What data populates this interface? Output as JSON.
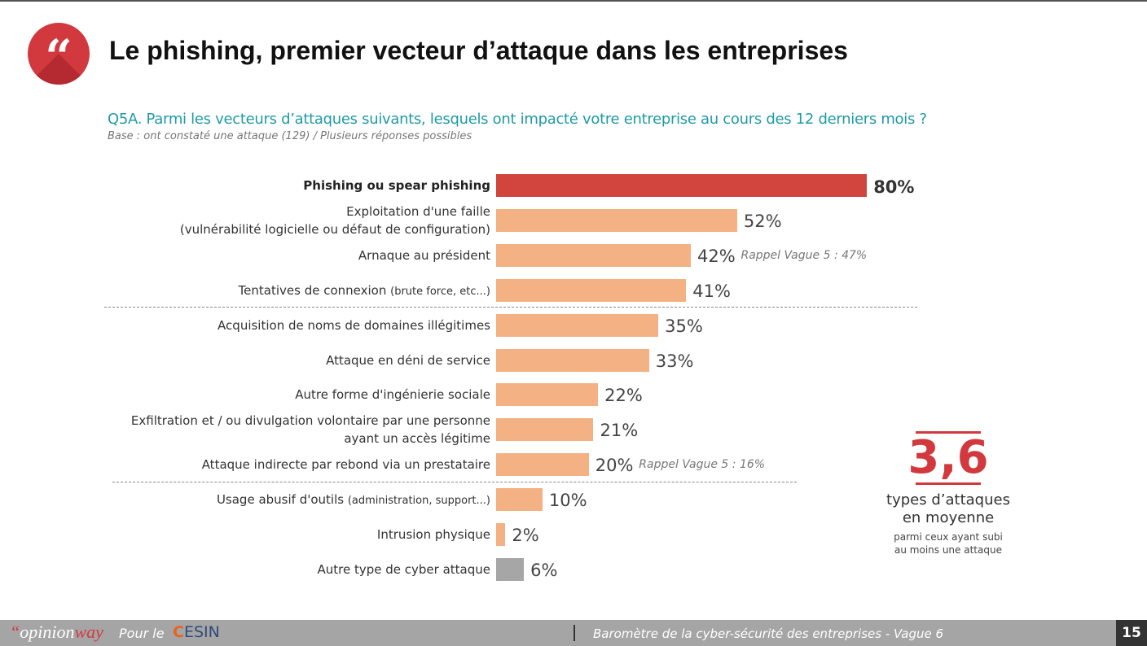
{
  "header": {
    "quote_glyph": "“",
    "title": "Le phishing, premier vecteur d’attaque dans les entreprises"
  },
  "question": {
    "text": "Q5A. Parmi les vecteurs d’attaques suivants, lesquels ont impacté votre entreprise au cours des 12 derniers mois ?",
    "base": "Base : ont constaté une attaque (129) / Plusieurs réponses possibles"
  },
  "chart_data": {
    "type": "bar",
    "orientation": "horizontal",
    "unit": "%",
    "xlim": [
      0,
      100
    ],
    "categories": [
      {
        "label": "Phishing ou spear phishing",
        "value": 80,
        "display": "80%",
        "color": "#d2453e",
        "bold": true
      },
      {
        "label": "Exploitation d'une faille",
        "label2": "(vulnérabilité logicielle ou défaut de configuration)",
        "value": 52,
        "display": "52%",
        "color": "#f4b183"
      },
      {
        "label": "Arnaque au président",
        "value": 42,
        "display": "42%",
        "color": "#f4b183",
        "note": "Rappel Vague 5 : 47%"
      },
      {
        "label": "Tentatives de connexion",
        "label_small": "(brute force, etc...)",
        "value": 41,
        "display": "41%",
        "color": "#f4b183"
      },
      {
        "label": "Acquisition de noms de domaines illégitimes",
        "value": 35,
        "display": "35%",
        "color": "#f4b183"
      },
      {
        "label": "Attaque en déni de service",
        "value": 33,
        "display": "33%",
        "color": "#f4b183"
      },
      {
        "label": "Autre forme d'ingénierie sociale",
        "value": 22,
        "display": "22%",
        "color": "#f4b183"
      },
      {
        "label": "Exfiltration et / ou divulgation volontaire par une personne",
        "label2": "ayant un accès légitime",
        "value": 21,
        "display": "21%",
        "color": "#f4b183"
      },
      {
        "label": "Attaque indirecte par rebond via un prestataire",
        "value": 20,
        "display": "20%",
        "color": "#f4b183",
        "note": "Rappel Vague 5 : 16%"
      },
      {
        "label": "Usage abusif d'outils",
        "label_small": "(administration, support...)",
        "value": 10,
        "display": "10%",
        "color": "#f4b183"
      },
      {
        "label": "Intrusion physique",
        "value": 2,
        "display": "2%",
        "color": "#f4b183"
      },
      {
        "label": "Autre type de cyber attaque",
        "value": 6,
        "display": "6%",
        "color": "#a6a6a6"
      }
    ],
    "separators_after_index": [
      3,
      8
    ]
  },
  "average": {
    "value": "3,6",
    "line1": "types d’attaques",
    "line2": "en moyenne",
    "sub1": "parmi ceux ayant subi",
    "sub2": "au moins une attaque"
  },
  "footer": {
    "logo_quote": "“",
    "logo_opinion": "opinion",
    "logo_way": "way",
    "pour_le": "Pour le",
    "cesin_c": "C",
    "cesin_rest": "ESIN",
    "barometer": "Baromètre de la cyber-sécurité des entreprises - Vague 6",
    "page": "15"
  }
}
